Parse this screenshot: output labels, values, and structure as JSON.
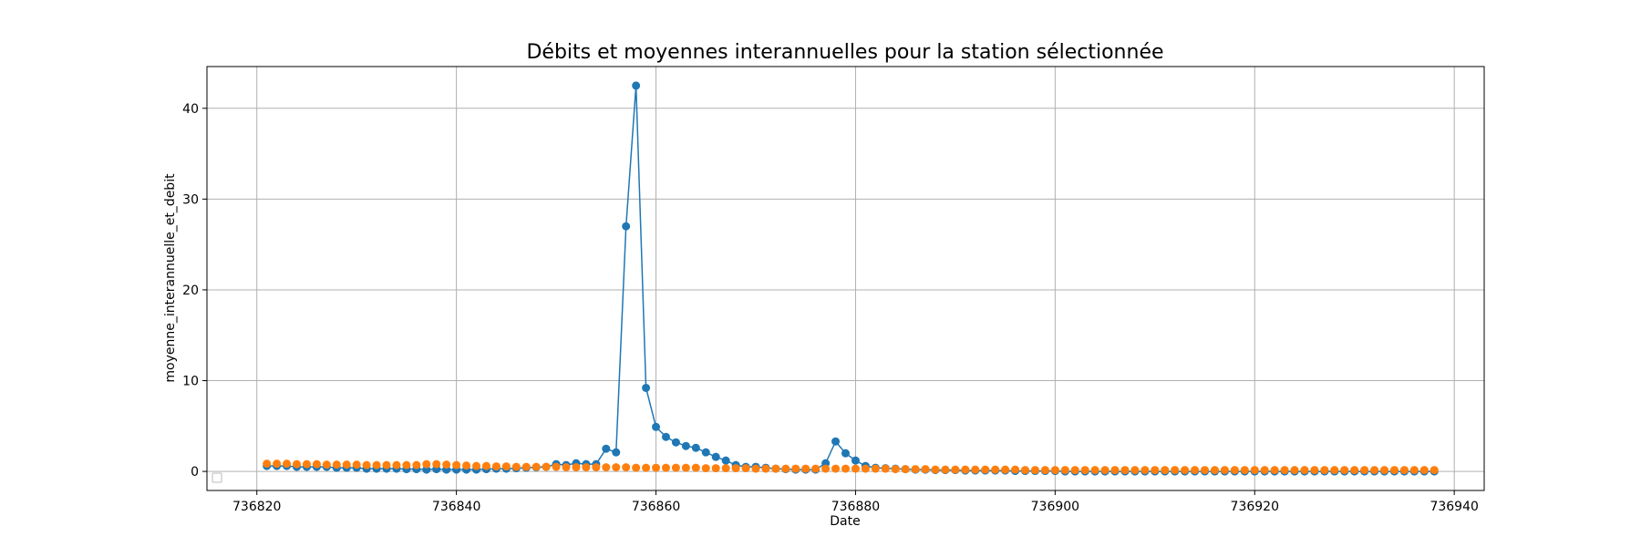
{
  "chart_data": {
    "type": "line",
    "title": "Débits et moyennes interannuelles pour la station sélectionnée",
    "xlabel": "Date",
    "ylabel": "moyenne_interannuelle_et_debit",
    "xlim": [
      736815,
      736943
    ],
    "ylim": [
      -2.1,
      44.6
    ],
    "x_ticks": [
      736820,
      736840,
      736860,
      736880,
      736900,
      736920,
      736940
    ],
    "y_ticks": [
      0,
      10,
      20,
      30,
      40
    ],
    "grid": true,
    "legend": "bottom-left",
    "x_start": 736821,
    "series": [
      {
        "color": "#1f77b4",
        "marker": "circle",
        "line": true,
        "values": [
          0.6,
          0.6,
          0.6,
          0.5,
          0.5,
          0.5,
          0.5,
          0.4,
          0.4,
          0.4,
          0.3,
          0.3,
          0.3,
          0.3,
          0.25,
          0.25,
          0.2,
          0.25,
          0.2,
          0.2,
          0.2,
          0.2,
          0.25,
          0.3,
          0.3,
          0.35,
          0.4,
          0.45,
          0.5,
          0.8,
          0.7,
          0.9,
          0.8,
          0.8,
          2.5,
          2.1,
          27.0,
          42.5,
          9.2,
          4.9,
          3.8,
          3.2,
          2.8,
          2.6,
          2.1,
          1.6,
          1.2,
          0.7,
          0.5,
          0.5,
          0.4,
          0.3,
          0.25,
          0.2,
          0.2,
          0.2,
          0.9,
          3.3,
          2.0,
          1.2,
          0.6,
          0.4,
          0.35,
          0.3,
          0.25,
          0.2,
          0.2,
          0.15,
          0.15,
          0.15,
          0.1,
          0.1,
          0.1,
          0.1,
          0.1,
          0.05,
          0.05,
          0.05,
          0.05,
          0.05,
          0.0,
          0.0,
          0.0,
          0.0,
          0.0,
          0.0,
          0.0,
          0.0,
          0.0,
          0.0,
          0.0,
          0.0,
          0.0,
          0.0,
          0.0,
          0.0,
          0.0,
          0.0,
          0.0,
          0.0,
          0.0,
          0.0,
          0.0,
          0.0,
          0.0,
          0.0,
          0.0,
          0.0,
          0.0,
          0.0,
          0.0,
          0.0,
          0.0,
          0.0,
          0.0,
          0.0,
          0.0,
          0.0
        ]
      },
      {
        "color": "#ff7f0e",
        "marker": "circle",
        "line": false,
        "values": [
          0.85,
          0.85,
          0.85,
          0.8,
          0.8,
          0.8,
          0.75,
          0.75,
          0.75,
          0.75,
          0.7,
          0.7,
          0.7,
          0.7,
          0.7,
          0.7,
          0.8,
          0.8,
          0.75,
          0.7,
          0.65,
          0.6,
          0.6,
          0.55,
          0.55,
          0.5,
          0.5,
          0.5,
          0.5,
          0.5,
          0.45,
          0.45,
          0.45,
          0.45,
          0.45,
          0.45,
          0.45,
          0.4,
          0.4,
          0.4,
          0.4,
          0.4,
          0.4,
          0.4,
          0.35,
          0.35,
          0.35,
          0.35,
          0.35,
          0.3,
          0.3,
          0.3,
          0.3,
          0.3,
          0.3,
          0.3,
          0.3,
          0.3,
          0.3,
          0.3,
          0.3,
          0.3,
          0.3,
          0.25,
          0.25,
          0.25,
          0.25,
          0.2,
          0.2,
          0.2,
          0.2,
          0.2,
          0.2,
          0.2,
          0.2,
          0.2,
          0.15,
          0.15,
          0.15,
          0.15,
          0.15,
          0.15,
          0.15,
          0.15,
          0.15,
          0.15,
          0.15,
          0.15,
          0.15,
          0.15,
          0.15,
          0.15,
          0.15,
          0.15,
          0.15,
          0.15,
          0.15,
          0.15,
          0.15,
          0.15,
          0.15,
          0.15,
          0.15,
          0.15,
          0.15,
          0.15,
          0.15,
          0.15,
          0.15,
          0.15,
          0.15,
          0.15,
          0.15,
          0.15,
          0.15,
          0.15,
          0.15,
          0.15
        ]
      }
    ]
  }
}
